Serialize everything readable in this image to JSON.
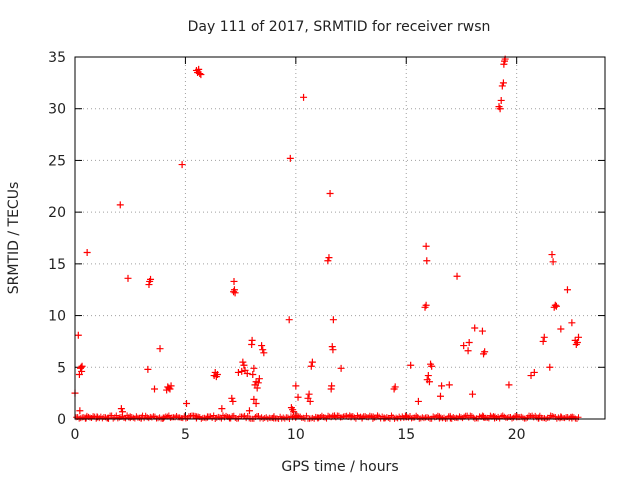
{
  "chart_data": {
    "type": "scatter",
    "title": "Day 111 of 2017, SRMTID for receiver rwsn",
    "xlabel": "GPS time / hours",
    "ylabel": "SRMTID / TECUs",
    "xlim": [
      0,
      24
    ],
    "ylim": [
      0,
      35
    ],
    "x_ticks": [
      0,
      5,
      10,
      15,
      20
    ],
    "y_ticks": [
      0,
      5,
      10,
      15,
      20,
      25,
      30,
      35
    ],
    "grid": true,
    "marker": "+",
    "color": "#ff0000",
    "series": [
      {
        "points": [
          [
            0.0,
            2.5
          ],
          [
            0.15,
            8.1
          ],
          [
            0.2,
            4.3
          ],
          [
            0.25,
            4.9
          ],
          [
            0.28,
            5.0
          ],
          [
            0.3,
            4.6
          ],
          [
            0.32,
            5.1
          ],
          [
            0.22,
            0.8
          ],
          [
            0.55,
            16.1
          ],
          [
            2.05,
            20.7
          ],
          [
            2.1,
            1.0
          ],
          [
            2.15,
            0.7
          ],
          [
            2.4,
            13.6
          ],
          [
            3.3,
            4.8
          ],
          [
            3.35,
            13.0
          ],
          [
            3.38,
            13.3
          ],
          [
            3.42,
            13.5
          ],
          [
            3.6,
            2.9
          ],
          [
            3.85,
            6.8
          ],
          [
            4.15,
            2.8
          ],
          [
            4.2,
            3.1
          ],
          [
            4.25,
            3.0
          ],
          [
            4.3,
            2.9
          ],
          [
            4.35,
            3.2
          ],
          [
            4.85,
            24.6
          ],
          [
            5.05,
            1.5
          ],
          [
            5.5,
            33.7
          ],
          [
            5.55,
            33.5
          ],
          [
            5.6,
            33.8
          ],
          [
            5.65,
            33.4
          ],
          [
            5.7,
            33.3
          ],
          [
            6.3,
            4.2
          ],
          [
            6.35,
            4.5
          ],
          [
            6.4,
            4.1
          ],
          [
            6.45,
            4.3
          ],
          [
            6.65,
            1.0
          ],
          [
            7.1,
            2.0
          ],
          [
            7.15,
            1.7
          ],
          [
            7.18,
            12.3
          ],
          [
            7.22,
            12.5
          ],
          [
            7.25,
            12.2
          ],
          [
            7.2,
            13.3
          ],
          [
            7.4,
            4.5
          ],
          [
            7.55,
            4.6
          ],
          [
            7.6,
            5.5
          ],
          [
            7.65,
            5.2
          ],
          [
            7.7,
            4.7
          ],
          [
            7.8,
            4.4
          ],
          [
            7.9,
            0.8
          ],
          [
            8.0,
            7.2
          ],
          [
            8.02,
            7.6
          ],
          [
            8.05,
            4.3
          ],
          [
            8.1,
            4.9
          ],
          [
            8.15,
            3.3
          ],
          [
            8.2,
            3.6
          ],
          [
            8.25,
            3.0
          ],
          [
            8.3,
            3.5
          ],
          [
            8.35,
            3.9
          ],
          [
            8.1,
            1.9
          ],
          [
            8.2,
            1.5
          ],
          [
            8.45,
            7.1
          ],
          [
            8.5,
            6.7
          ],
          [
            8.55,
            6.4
          ],
          [
            9.7,
            9.6
          ],
          [
            9.75,
            25.2
          ],
          [
            9.8,
            1.1
          ],
          [
            9.85,
            0.9
          ],
          [
            9.9,
            0.7
          ],
          [
            10.0,
            3.2
          ],
          [
            10.1,
            2.1
          ],
          [
            10.35,
            31.1
          ],
          [
            10.55,
            2.0
          ],
          [
            10.6,
            2.4
          ],
          [
            10.65,
            1.7
          ],
          [
            10.7,
            5.1
          ],
          [
            10.75,
            5.5
          ],
          [
            11.45,
            15.3
          ],
          [
            11.5,
            15.6
          ],
          [
            11.55,
            21.8
          ],
          [
            11.6,
            2.9
          ],
          [
            11.62,
            3.2
          ],
          [
            11.65,
            7.0
          ],
          [
            11.68,
            6.7
          ],
          [
            11.7,
            9.6
          ],
          [
            11.75,
            0.3
          ],
          [
            12.05,
            4.9
          ],
          [
            14.45,
            2.9
          ],
          [
            14.5,
            3.1
          ],
          [
            15.2,
            5.2
          ],
          [
            15.55,
            1.7
          ],
          [
            15.85,
            10.8
          ],
          [
            15.9,
            11.0
          ],
          [
            15.9,
            16.7
          ],
          [
            15.93,
            15.3
          ],
          [
            15.95,
            3.8
          ],
          [
            16.0,
            4.2
          ],
          [
            16.05,
            3.6
          ],
          [
            16.1,
            5.3
          ],
          [
            16.15,
            5.1
          ],
          [
            16.55,
            2.2
          ],
          [
            16.6,
            3.2
          ],
          [
            16.95,
            3.3
          ],
          [
            17.3,
            13.8
          ],
          [
            17.6,
            7.1
          ],
          [
            17.8,
            6.6
          ],
          [
            17.85,
            7.4
          ],
          [
            18.0,
            2.4
          ],
          [
            18.1,
            8.8
          ],
          [
            18.5,
            6.3
          ],
          [
            18.55,
            6.5
          ],
          [
            18.45,
            8.5
          ],
          [
            19.2,
            30.2
          ],
          [
            19.25,
            30.0
          ],
          [
            19.3,
            30.8
          ],
          [
            19.35,
            32.2
          ],
          [
            19.4,
            32.5
          ],
          [
            19.42,
            34.3
          ],
          [
            19.45,
            34.6
          ],
          [
            19.48,
            34.8
          ],
          [
            19.65,
            3.3
          ],
          [
            20.65,
            4.2
          ],
          [
            20.8,
            4.5
          ],
          [
            21.2,
            7.5
          ],
          [
            21.25,
            7.9
          ],
          [
            21.5,
            5.0
          ],
          [
            21.6,
            15.9
          ],
          [
            21.65,
            15.2
          ],
          [
            21.7,
            10.8
          ],
          [
            21.75,
            11.0
          ],
          [
            21.8,
            10.9
          ],
          [
            22.0,
            8.7
          ],
          [
            22.3,
            12.5
          ],
          [
            22.5,
            9.3
          ],
          [
            22.65,
            7.6
          ],
          [
            22.7,
            7.2
          ],
          [
            22.75,
            7.4
          ],
          [
            22.8,
            7.9
          ],
          [
            0.5,
            0.1
          ],
          [
            1.0,
            0.2
          ],
          [
            1.5,
            0.1
          ],
          [
            2.5,
            0.2
          ],
          [
            3.0,
            0.1
          ],
          [
            4.0,
            0.1
          ],
          [
            5.5,
            0.1
          ],
          [
            6.0,
            0.2
          ],
          [
            7.0,
            0.1
          ],
          [
            9.0,
            0.1
          ],
          [
            10.0,
            0.2
          ],
          [
            11.0,
            0.1
          ],
          [
            12.5,
            0.2
          ],
          [
            13.0,
            0.1
          ],
          [
            13.5,
            0.2
          ],
          [
            14.0,
            0.1
          ],
          [
            15.0,
            0.2
          ],
          [
            16.5,
            0.2
          ],
          [
            17.0,
            0.1
          ],
          [
            18.5,
            0.2
          ],
          [
            19.0,
            0.1
          ],
          [
            20.0,
            0.2
          ],
          [
            21.0,
            0.1
          ],
          [
            22.0,
            0.2
          ],
          [
            22.5,
            0.1
          ]
        ]
      }
    ]
  }
}
